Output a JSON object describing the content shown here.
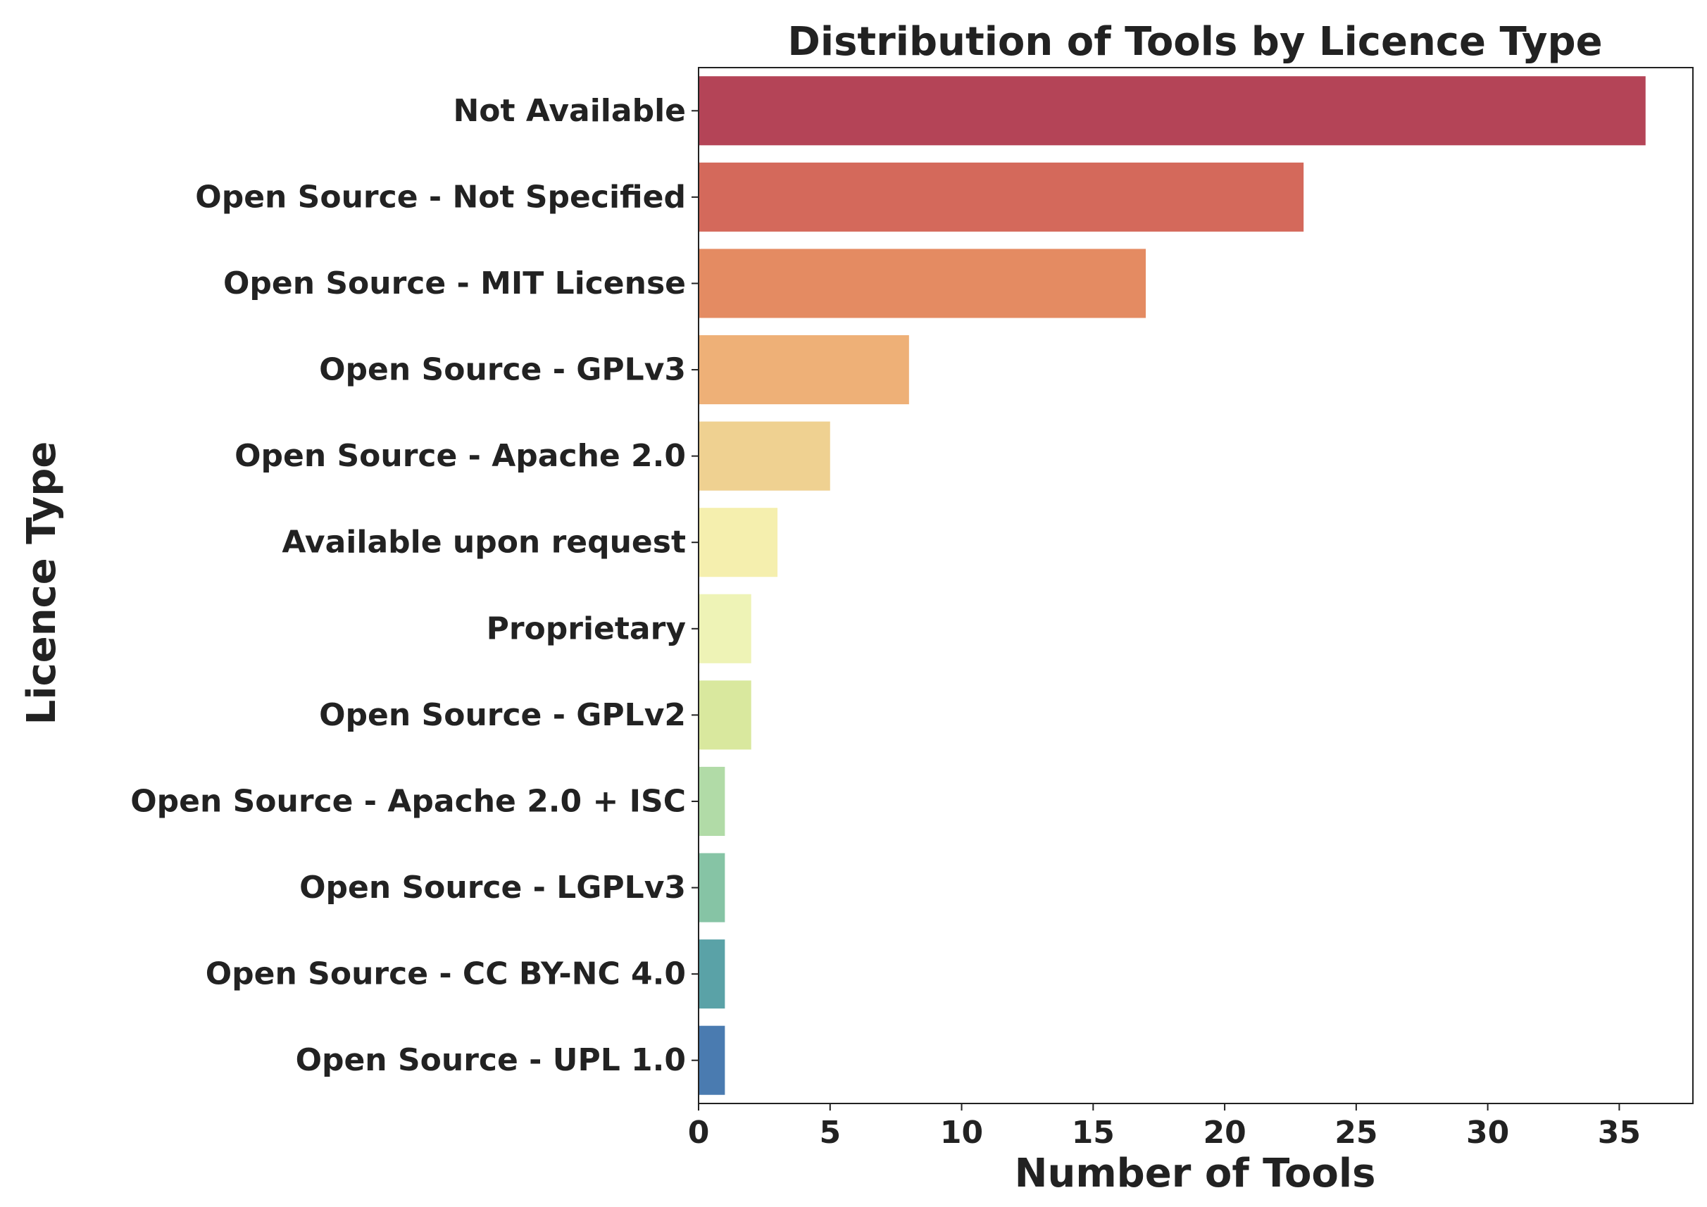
{
  "chart_data": {
    "type": "bar",
    "orientation": "horizontal",
    "title": "Distribution of Tools by Licence Type",
    "xlabel": "Number of Tools",
    "ylabel": "Licence Type",
    "categories": [
      "Not Available",
      "Open Source - Not Specified",
      "Open Source - MIT License",
      "Open Source - GPLv3",
      "Open Source - Apache 2.0",
      "Available upon request",
      "Proprietary",
      "Open Source - GPLv2",
      "Open Source - Apache 2.0 + ISC",
      "Open Source - LGPLv3",
      "Open Source - CC BY-NC 4.0",
      "Open Source - UPL 1.0"
    ],
    "values": [
      36,
      23,
      17,
      8,
      5,
      3,
      2,
      2,
      1,
      1,
      1,
      1
    ],
    "colors": [
      "#b44457",
      "#d4695b",
      "#e48b62",
      "#eeb077",
      "#efd191",
      "#f5efae",
      "#eef3b6",
      "#d9e89e",
      "#b1dba7",
      "#86c4a5",
      "#5aa2a7",
      "#4a7bb0"
    ],
    "xlim": [
      0,
      37.8
    ],
    "xticks": [
      0,
      5,
      10,
      15,
      20,
      25,
      30,
      35
    ],
    "grid": false,
    "legend": "none"
  }
}
